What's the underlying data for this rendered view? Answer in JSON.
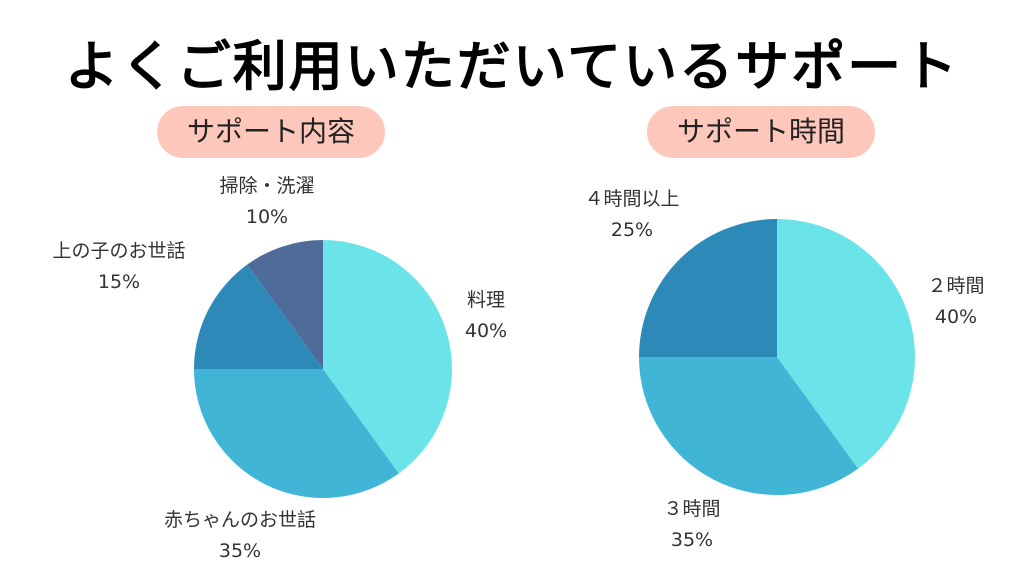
{
  "title": "よくご利用いただいているサポート",
  "chart_data": [
    {
      "type": "pie",
      "title": "サポート内容",
      "start": "top",
      "direction": "clockwise",
      "slices": [
        {
          "label": "料理",
          "value": 40,
          "value_label": "40%",
          "color": "#6ae4e8"
        },
        {
          "label": "赤ちゃんのお世話",
          "value": 35,
          "value_label": "35%",
          "color": "#40b5d5"
        },
        {
          "label": "上の子のお世話",
          "value": 15,
          "value_label": "15%",
          "color": "#2d8ab8"
        },
        {
          "label": "掃除・洗濯",
          "value": 10,
          "value_label": "10%",
          "color": "#4e6b99"
        }
      ]
    },
    {
      "type": "pie",
      "title": "サポート時間",
      "start": "top",
      "direction": "clockwise",
      "slices": [
        {
          "label": "２時間",
          "value": 40,
          "value_label": "40%",
          "color": "#6ae4e8"
        },
        {
          "label": "３時間",
          "value": 35,
          "value_label": "35%",
          "color": "#40b5d5"
        },
        {
          "label": "４時間以上",
          "value": 25,
          "value_label": "25%",
          "color": "#2d8ab8"
        }
      ]
    }
  ],
  "pill_color": "#fdc8bb"
}
